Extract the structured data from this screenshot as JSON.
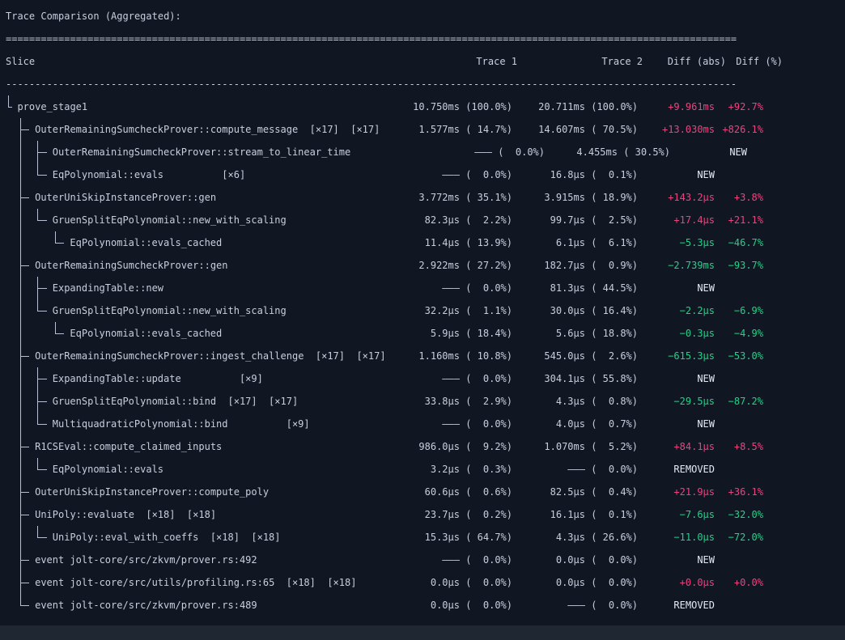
{
  "title": "Trace Comparison (Aggregated):",
  "separators": {
    "double": "=============================================================================================================================",
    "single": "-----------------------------------------------------------------------------------------------------------------------------"
  },
  "columns": {
    "slice": "Slice",
    "trace1": "Trace 1",
    "trace2": "Trace 2",
    "diff_abs": "Diff (abs)",
    "diff_pct": "Diff (%)"
  },
  "colors": {
    "background": "#101722",
    "background_bottom": "#1e2732",
    "text": "#c9cedf",
    "tree_line": "#b9bed2",
    "increase": "#f0417f",
    "decrease": "#25d089",
    "flag": "#e6eaf4"
  },
  "rows": [
    {
      "prefix": "└ ",
      "label": "prove_stage1",
      "trace1": "10.750ms (100.0%)",
      "trace2": "20.711ms (100.0%)",
      "diff_abs": "+9.961ms",
      "diff_pct": "+92.7%",
      "trend": "up"
    },
    {
      "prefix": "  ├─ ",
      "label": "OuterRemainingSumcheckProver::compute_message  [×17]  [×17]",
      "trace1": "1.577ms ( 14.7%)",
      "trace2": "14.607ms ( 70.5%)",
      "diff_abs": "+13.030ms",
      "diff_pct": "+826.1%",
      "trend": "up"
    },
    {
      "prefix": "  │  ├─ ",
      "label": "OuterRemainingSumcheckProver::stream_to_linear_time",
      "trace1": "——— (  0.0%)",
      "trace2": "4.455ms ( 30.5%)",
      "diff_abs": "NEW",
      "diff_pct": "",
      "trend": "new",
      "shift": true
    },
    {
      "prefix": "  │  └─ ",
      "label": "EqPolynomial::evals          [×6]",
      "trace1": "——— (  0.0%)",
      "trace2": "16.8µs (  0.1%)",
      "diff_abs": "NEW",
      "diff_pct": "",
      "trend": "new"
    },
    {
      "prefix": "  ├─ ",
      "label": "OuterUniSkipInstanceProver::gen",
      "trace1": "3.772ms ( 35.1%)",
      "trace2": "3.915ms ( 18.9%)",
      "diff_abs": "+143.2µs",
      "diff_pct": "+3.8%",
      "trend": "up"
    },
    {
      "prefix": "  │  └─ ",
      "label": "GruenSplitEqPolynomial::new_with_scaling",
      "trace1": "82.3µs (  2.2%)",
      "trace2": "99.7µs (  2.5%)",
      "diff_abs": "+17.4µs",
      "diff_pct": "+21.1%",
      "trend": "up"
    },
    {
      "prefix": "  │     └─ ",
      "label": "EqPolynomial::evals_cached",
      "trace1": "11.4µs ( 13.9%)",
      "trace2": "6.1µs (  6.1%)",
      "diff_abs": "−5.3µs",
      "diff_pct": "−46.7%",
      "trend": "down"
    },
    {
      "prefix": "  ├─ ",
      "label": "OuterRemainingSumcheckProver::gen",
      "trace1": "2.922ms ( 27.2%)",
      "trace2": "182.7µs (  0.9%)",
      "diff_abs": "−2.739ms",
      "diff_pct": "−93.7%",
      "trend": "down"
    },
    {
      "prefix": "  │  ├─ ",
      "label": "ExpandingTable::new",
      "trace1": "——— (  0.0%)",
      "trace2": "81.3µs ( 44.5%)",
      "diff_abs": "NEW",
      "diff_pct": "",
      "trend": "new"
    },
    {
      "prefix": "  │  └─ ",
      "label": "GruenSplitEqPolynomial::new_with_scaling",
      "trace1": "32.2µs (  1.1%)",
      "trace2": "30.0µs ( 16.4%)",
      "diff_abs": "−2.2µs",
      "diff_pct": "−6.9%",
      "trend": "down"
    },
    {
      "prefix": "  │     └─ ",
      "label": "EqPolynomial::evals_cached",
      "trace1": "5.9µs ( 18.4%)",
      "trace2": "5.6µs ( 18.8%)",
      "diff_abs": "−0.3µs",
      "diff_pct": "−4.9%",
      "trend": "down"
    },
    {
      "prefix": "  ├─ ",
      "label": "OuterRemainingSumcheckProver::ingest_challenge  [×17]  [×17]",
      "trace1": "1.160ms ( 10.8%)",
      "trace2": "545.0µs (  2.6%)",
      "diff_abs": "−615.3µs",
      "diff_pct": "−53.0%",
      "trend": "down"
    },
    {
      "prefix": "  │  ├─ ",
      "label": "ExpandingTable::update          [×9]",
      "trace1": "——— (  0.0%)",
      "trace2": "304.1µs ( 55.8%)",
      "diff_abs": "NEW",
      "diff_pct": "",
      "trend": "new"
    },
    {
      "prefix": "  │  ├─ ",
      "label": "GruenSplitEqPolynomial::bind  [×17]  [×17]",
      "trace1": "33.8µs (  2.9%)",
      "trace2": "4.3µs (  0.8%)",
      "diff_abs": "−29.5µs",
      "diff_pct": "−87.2%",
      "trend": "down"
    },
    {
      "prefix": "  │  └─ ",
      "label": "MultiquadraticPolynomial::bind          [×9]",
      "trace1": "——— (  0.0%)",
      "trace2": "4.0µs (  0.7%)",
      "diff_abs": "NEW",
      "diff_pct": "",
      "trend": "new"
    },
    {
      "prefix": "  ├─ ",
      "label": "R1CSEval::compute_claimed_inputs",
      "trace1": "986.0µs (  9.2%)",
      "trace2": "1.070ms (  5.2%)",
      "diff_abs": "+84.1µs",
      "diff_pct": "+8.5%",
      "trend": "up"
    },
    {
      "prefix": "  │  └─ ",
      "label": "EqPolynomial::evals",
      "trace1": "3.2µs (  0.3%)",
      "trace2": "——— (  0.0%)",
      "diff_abs": "REMOVED",
      "diff_pct": "",
      "trend": "removed"
    },
    {
      "prefix": "  ├─ ",
      "label": "OuterUniSkipInstanceProver::compute_poly",
      "trace1": "60.6µs (  0.6%)",
      "trace2": "82.5µs (  0.4%)",
      "diff_abs": "+21.9µs",
      "diff_pct": "+36.1%",
      "trend": "up"
    },
    {
      "prefix": "  ├─ ",
      "label": "UniPoly::evaluate  [×18]  [×18]",
      "trace1": "23.7µs (  0.2%)",
      "trace2": "16.1µs (  0.1%)",
      "diff_abs": "−7.6µs",
      "diff_pct": "−32.0%",
      "trend": "down"
    },
    {
      "prefix": "  │  └─ ",
      "label": "UniPoly::eval_with_coeffs  [×18]  [×18]",
      "trace1": "15.3µs ( 64.7%)",
      "trace2": "4.3µs ( 26.6%)",
      "diff_abs": "−11.0µs",
      "diff_pct": "−72.0%",
      "trend": "down"
    },
    {
      "prefix": "  ├─ ",
      "label": "event jolt-core/src/zkvm/prover.rs:492",
      "trace1": "——— (  0.0%)",
      "trace2": "0.0µs (  0.0%)",
      "diff_abs": "NEW",
      "diff_pct": "",
      "trend": "new"
    },
    {
      "prefix": "  ├─ ",
      "label": "event jolt-core/src/utils/profiling.rs:65  [×18]  [×18]",
      "trace1": "0.0µs (  0.0%)",
      "trace2": "0.0µs (  0.0%)",
      "diff_abs": "+0.0µs",
      "diff_pct": "+0.0%",
      "trend": "up"
    },
    {
      "prefix": "  └─ ",
      "label": "event jolt-core/src/zkvm/prover.rs:489",
      "trace1": "0.0µs (  0.0%)",
      "trace2": "——— (  0.0%)",
      "diff_abs": "REMOVED",
      "diff_pct": "",
      "trend": "removed"
    }
  ]
}
